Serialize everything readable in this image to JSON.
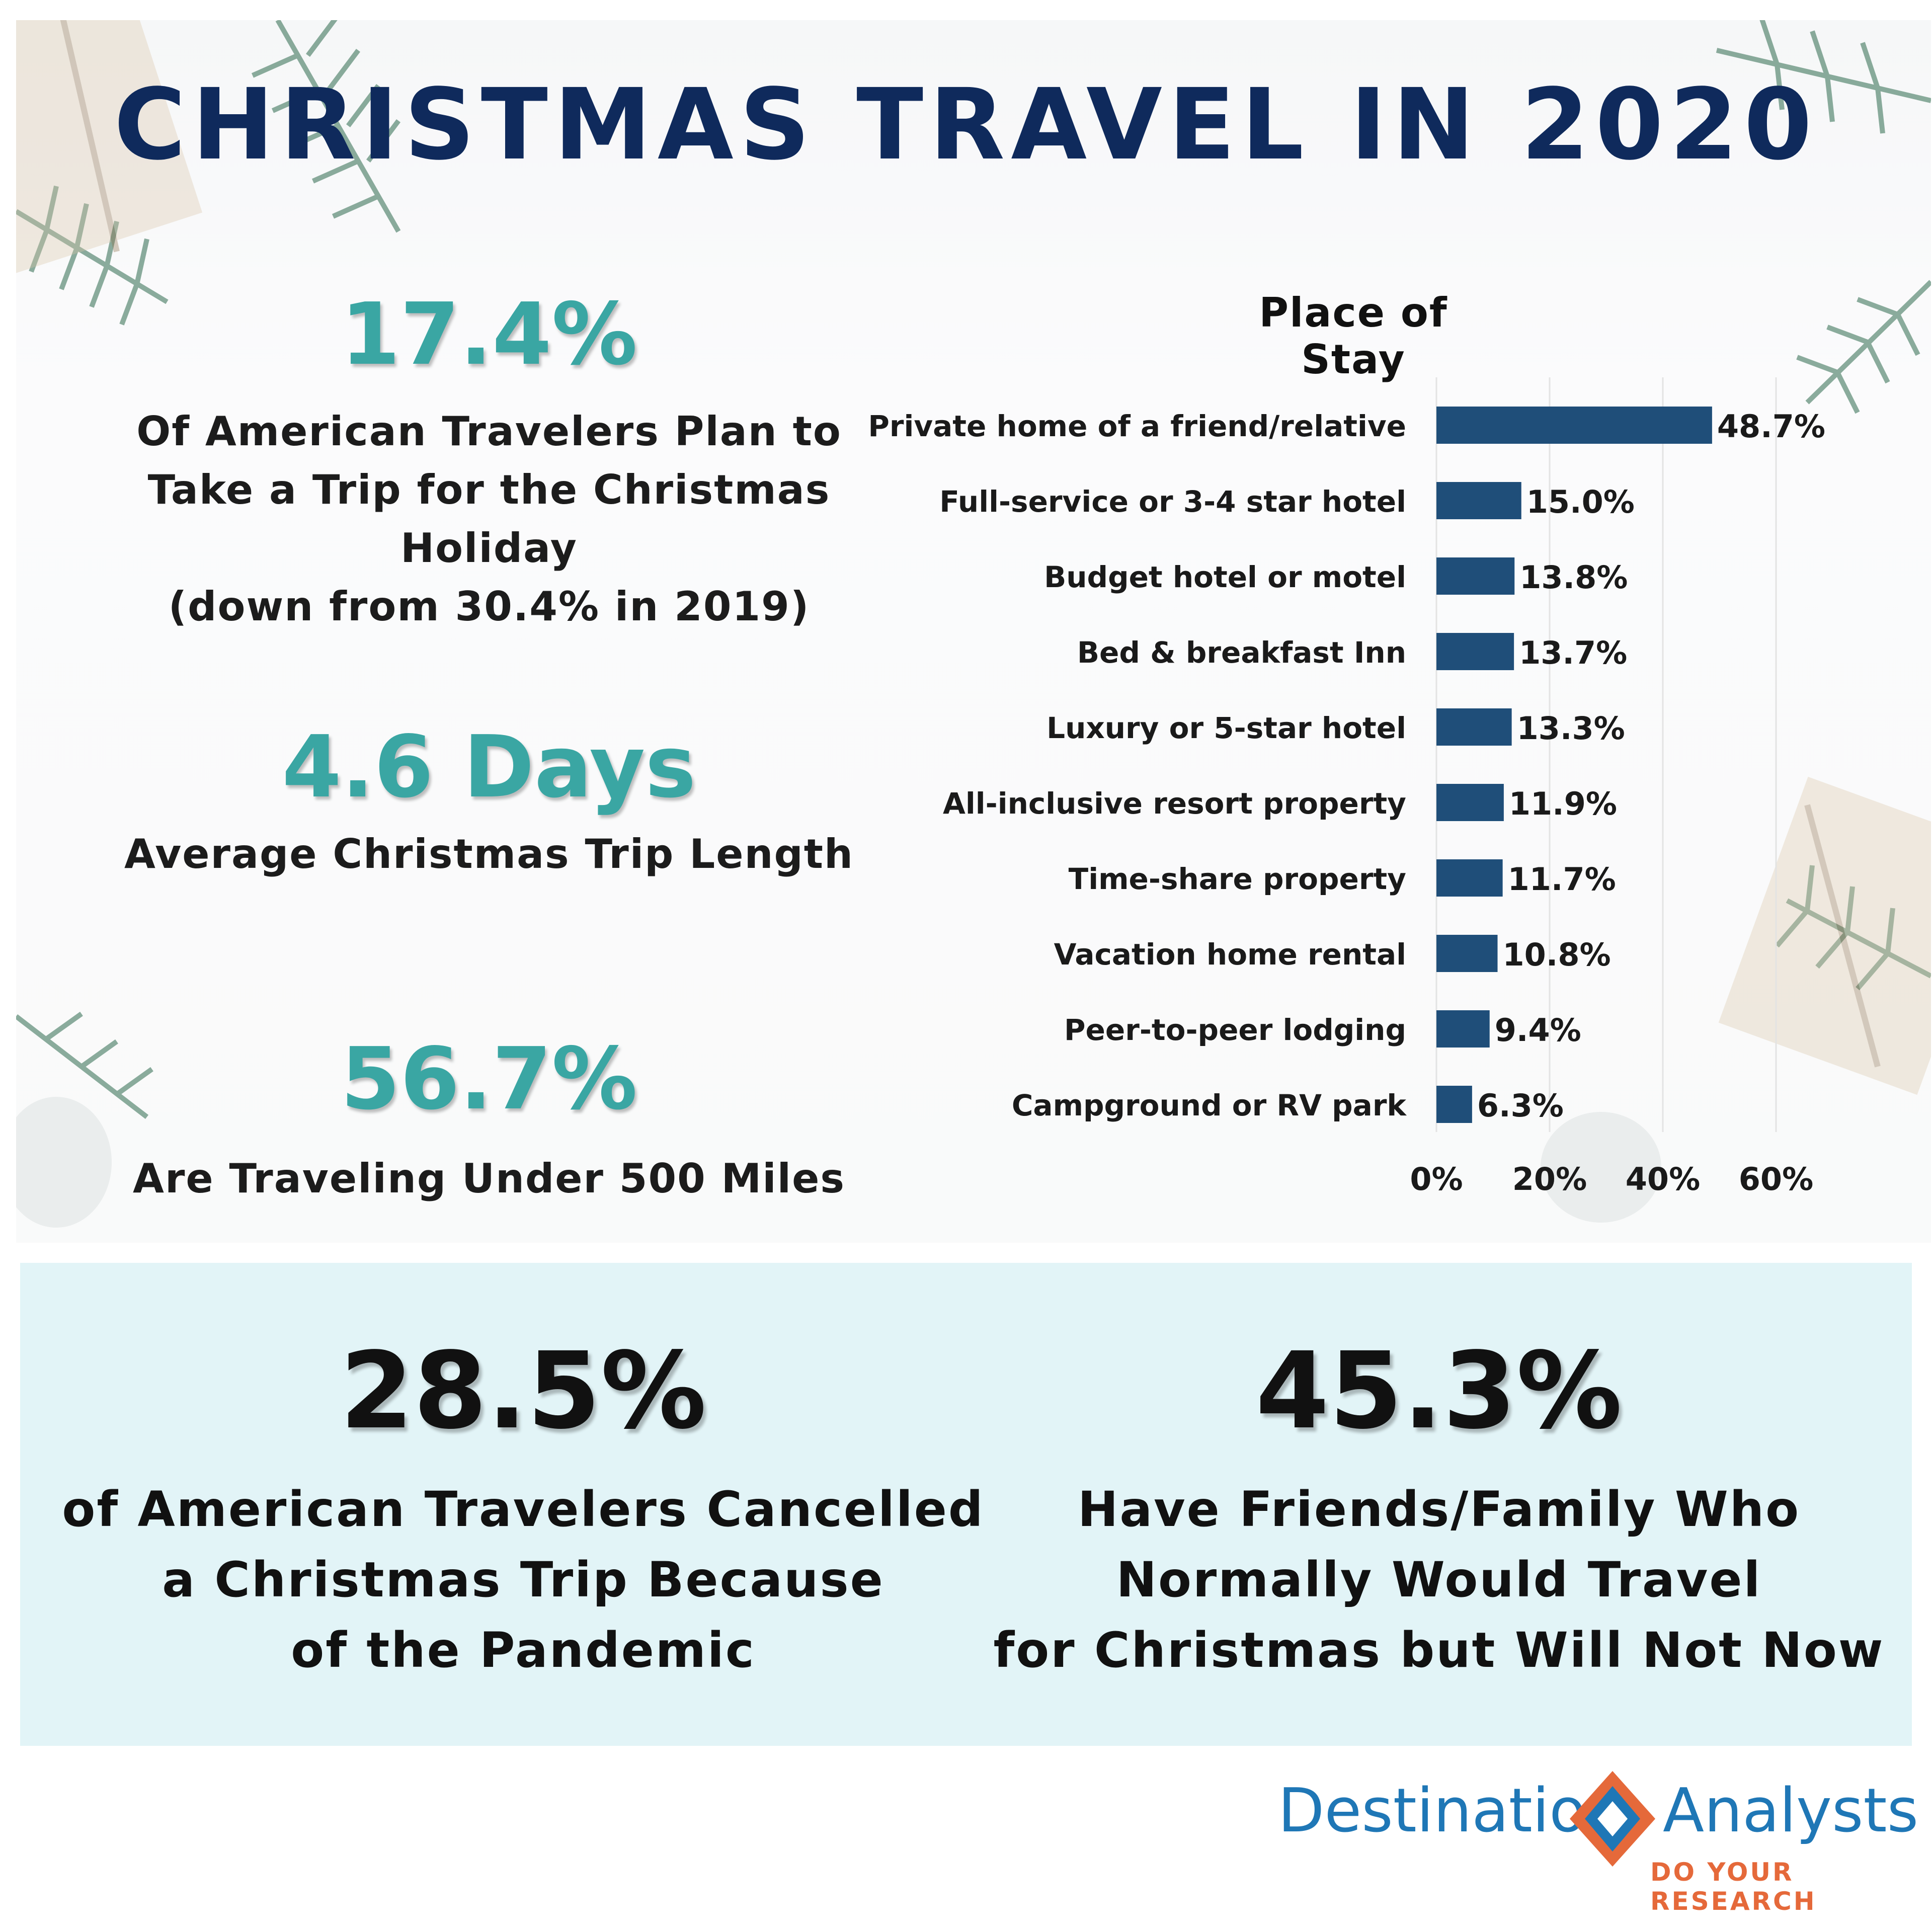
{
  "title": "CHRISTMAS TRAVEL IN 2020",
  "stats": [
    {
      "value": "17.4%",
      "lines": [
        "Of American Travelers Plan to",
        "Take a Trip for the Christmas Holiday",
        "(down from 30.4% in 2019)"
      ]
    },
    {
      "value": "4.6 Days",
      "lines": [
        "Average Christmas Trip Length"
      ]
    },
    {
      "value": "56.7%",
      "lines": [
        "Are Traveling Under 500 Miles"
      ]
    }
  ],
  "chart_data": {
    "type": "bar",
    "orientation": "horizontal",
    "title": "Place of Stay",
    "categories": [
      "Private home of a friend/relative",
      "Full-service or 3-4 star hotel",
      "Budget hotel or motel",
      "Bed & breakfast Inn",
      "Luxury or 5-star hotel",
      "All-inclusive resort property",
      "Time-share property",
      "Vacation home rental",
      "Peer-to-peer lodging",
      "Campground or RV park"
    ],
    "values": [
      48.7,
      15.0,
      13.8,
      13.7,
      13.3,
      11.9,
      11.7,
      10.8,
      9.4,
      6.3
    ],
    "data_labels": [
      "48.7%",
      "15.0%",
      "13.8%",
      "13.7%",
      "13.3%",
      "11.9%",
      "11.7%",
      "10.8%",
      "9.4%",
      "6.3%"
    ],
    "xlim": [
      0,
      60
    ],
    "x_ticks": [
      "0%",
      "20%",
      "40%",
      "60%"
    ],
    "x_tick_values": [
      0,
      20,
      40,
      60
    ],
    "bar_color": "#1f4e79",
    "grid": true
  },
  "bottom": [
    {
      "value": "28.5%",
      "lines": [
        "of American Travelers Cancelled",
        "a Christmas Trip Because",
        "of the Pandemic"
      ]
    },
    {
      "value": "45.3%",
      "lines": [
        "Have Friends/Family Who",
        "Normally Would Travel",
        "for Christmas but Will Not Now"
      ]
    }
  ],
  "logo": {
    "left_word": "Destination",
    "right_word": "Analysts",
    "tagline": "DO YOUR RESEARCH"
  },
  "colors": {
    "title": "#0f2a5c",
    "accent_teal": "#3aa6a3",
    "bottom_panel": "#e2f4f7",
    "logo_blue": "#1f77b6",
    "logo_orange": "#e5693a"
  }
}
